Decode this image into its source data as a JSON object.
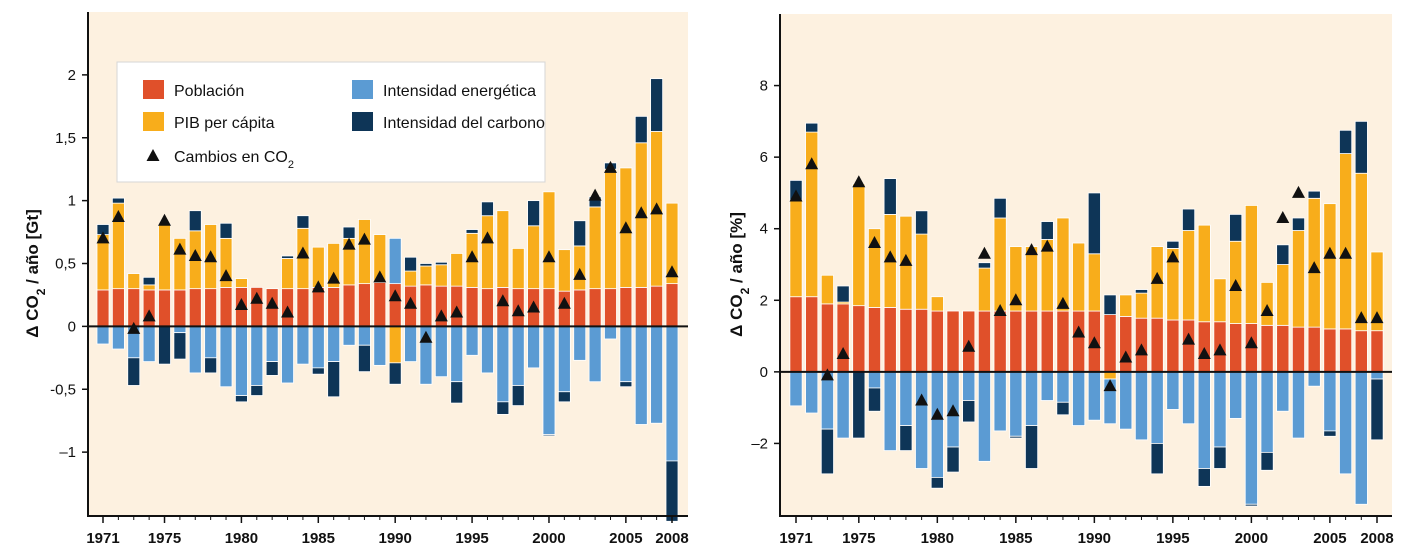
{
  "colors": {
    "poblacion": "#e0502a",
    "pib": "#f8ad1b",
    "energetica": "#5b9bd3",
    "carbono": "#0e3557",
    "background": "#fdf1e0",
    "marker": "#111111"
  },
  "legend": {
    "items": [
      {
        "key": "poblacion",
        "label": "Población",
        "color": "#e0502a",
        "kind": "box"
      },
      {
        "key": "pib",
        "label": "PIB per cápita",
        "color": "#f8ad1b",
        "kind": "box"
      },
      {
        "key": "co2",
        "label": "Cambios en CO",
        "sub": "2",
        "color": "#111111",
        "kind": "triangle"
      },
      {
        "key": "energetica",
        "label": "Intensidad energética",
        "color": "#5b9bd3",
        "kind": "box"
      },
      {
        "key": "carbono",
        "label": "Intensidad del carbono",
        "color": "#0e3557",
        "kind": "box"
      }
    ]
  },
  "chart_data": [
    {
      "type": "bar",
      "stacked": true,
      "ylabel": "Δ CO₂ / año [Gt]",
      "ylabel_parts": {
        "pre": "Δ CO",
        "sub": "2",
        "post": " / año [Gt]"
      },
      "ylim": [
        -1.5,
        2.5
      ],
      "yticks": [
        -1,
        -0.5,
        0,
        0.5,
        1,
        1.5,
        2
      ],
      "ytick_labels": [
        "–1",
        "-0,5",
        "0",
        "0,5",
        "1",
        "1,5",
        "2"
      ],
      "xlim": [
        1970.3,
        1972.4
      ],
      "xticks": [
        1971,
        1975,
        1980,
        1985,
        1990,
        1995,
        2000,
        2005,
        2008
      ],
      "xtick_labels": [
        "1971",
        "1975",
        "1980",
        "1985",
        "1990",
        "1995",
        "2000",
        "2005",
        "2008"
      ],
      "grid": false,
      "legend_position": "top-left",
      "x": [
        1971,
        1972,
        1973,
        1974,
        1975,
        1976,
        1977,
        1978,
        1979,
        1980,
        1981,
        1982,
        1983,
        1984,
        1985,
        1986,
        1987,
        1988,
        1989,
        1990,
        1991,
        1992,
        1993,
        1994,
        1995,
        1996,
        1997,
        1998,
        1999,
        2000,
        2001,
        2002,
        2003,
        2004,
        2005,
        2006,
        2007,
        2008
      ],
      "series": [
        {
          "name": "Población",
          "key": "poblacion",
          "values": [
            0.29,
            0.3,
            0.3,
            0.29,
            0.29,
            0.29,
            0.3,
            0.3,
            0.31,
            0.31,
            0.31,
            0.3,
            0.3,
            0.3,
            0.31,
            0.31,
            0.33,
            0.34,
            0.35,
            0.34,
            0.32,
            0.33,
            0.32,
            0.32,
            0.31,
            0.3,
            0.31,
            0.3,
            0.3,
            0.3,
            0.28,
            0.29,
            0.3,
            0.3,
            0.31,
            0.31,
            0.32,
            0.34
          ]
        },
        {
          "name": "PIB per cápita",
          "key": "pib",
          "values": [
            0.44,
            0.68,
            0.12,
            0.04,
            0.52,
            0.41,
            0.46,
            0.51,
            0.39,
            0.07,
            0.0,
            0.0,
            0.24,
            0.48,
            0.32,
            0.35,
            0.37,
            0.51,
            0.38,
            -0.29,
            0.12,
            0.15,
            0.17,
            0.26,
            0.43,
            0.58,
            0.61,
            0.32,
            0.5,
            0.77,
            0.33,
            0.35,
            0.65,
            0.95,
            0.95,
            1.15,
            1.23,
            0.64
          ]
        },
        {
          "name": "Intensidad energética",
          "key": "energetica",
          "values": [
            -0.14,
            -0.18,
            -0.25,
            -0.28,
            0.0,
            -0.05,
            -0.37,
            -0.25,
            -0.48,
            -0.55,
            -0.47,
            -0.28,
            -0.45,
            -0.3,
            -0.33,
            -0.28,
            -0.15,
            -0.15,
            -0.31,
            0.36,
            -0.28,
            -0.46,
            -0.4,
            -0.44,
            -0.23,
            -0.37,
            -0.6,
            -0.47,
            -0.33,
            -0.86,
            -0.52,
            -0.27,
            -0.44,
            -0.1,
            -0.44,
            -0.78,
            -0.77,
            -1.07
          ]
        },
        {
          "name": "Intensidad del carbono",
          "key": "carbono",
          "values": [
            0.08,
            0.04,
            -0.22,
            0.06,
            -0.3,
            -0.21,
            0.16,
            -0.12,
            0.12,
            -0.05,
            -0.08,
            -0.11,
            0.02,
            0.1,
            -0.05,
            -0.28,
            0.09,
            -0.21,
            0.0,
            -0.17,
            0.11,
            0.02,
            0.02,
            -0.17,
            0.03,
            0.11,
            -0.1,
            -0.16,
            0.2,
            -0.01,
            -0.08,
            0.2,
            0.08,
            0.05,
            -0.04,
            0.21,
            0.42,
            -0.48
          ]
        }
      ],
      "co2_changes": [
        0.7,
        0.87,
        -0.02,
        0.08,
        0.84,
        0.61,
        0.56,
        0.55,
        0.4,
        0.17,
        0.22,
        0.18,
        0.11,
        0.58,
        0.31,
        0.38,
        0.65,
        0.69,
        0.39,
        0.24,
        0.18,
        -0.09,
        0.08,
        0.11,
        0.55,
        0.7,
        0.2,
        0.12,
        0.15,
        0.55,
        0.18,
        0.41,
        1.04,
        1.26,
        0.78,
        0.9,
        0.93,
        0.43
      ]
    },
    {
      "type": "bar",
      "stacked": true,
      "ylabel": "Δ CO₂ / año [%]",
      "ylabel_parts": {
        "pre": "Δ CO",
        "sub": "2",
        "post": " / año [%]"
      },
      "ylim": [
        -4,
        10
      ],
      "yticks": [
        -2,
        0,
        2,
        4,
        6,
        8
      ],
      "ytick_labels": [
        "–2",
        "0",
        "2",
        "4",
        "6",
        "8"
      ],
      "xticks": [
        1971,
        1975,
        1980,
        1985,
        1990,
        1995,
        2000,
        2005,
        2008
      ],
      "xtick_labels": [
        "1971",
        "1975",
        "1980",
        "1985",
        "1990",
        "1995",
        "2000",
        "2005",
        "2008"
      ],
      "grid": false,
      "x": [
        1971,
        1972,
        1973,
        1974,
        1975,
        1976,
        1977,
        1978,
        1979,
        1980,
        1981,
        1982,
        1983,
        1984,
        1985,
        1986,
        1987,
        1988,
        1989,
        1990,
        1991,
        1992,
        1993,
        1994,
        1995,
        1996,
        1997,
        1998,
        1999,
        2000,
        2001,
        2002,
        2003,
        2004,
        2005,
        2006,
        2007,
        2008
      ],
      "series": [
        {
          "name": "Población",
          "key": "poblacion",
          "values": [
            2.1,
            2.1,
            1.9,
            1.9,
            1.85,
            1.8,
            1.8,
            1.75,
            1.75,
            1.7,
            1.7,
            1.7,
            1.7,
            1.7,
            1.7,
            1.7,
            1.7,
            1.7,
            1.7,
            1.7,
            1.6,
            1.55,
            1.5,
            1.5,
            1.45,
            1.45,
            1.4,
            1.4,
            1.35,
            1.35,
            1.3,
            1.3,
            1.25,
            1.25,
            1.2,
            1.2,
            1.15,
            1.15
          ]
        },
        {
          "name": "PIB per cápita",
          "key": "pib",
          "values": [
            2.7,
            4.6,
            0.8,
            0.05,
            3.4,
            2.2,
            2.6,
            2.6,
            2.1,
            0.4,
            0.0,
            0.0,
            1.2,
            2.6,
            1.8,
            1.8,
            2.0,
            2.6,
            1.9,
            1.6,
            -0.2,
            0.6,
            0.7,
            2.0,
            2.0,
            2.5,
            2.7,
            1.2,
            2.3,
            3.3,
            1.2,
            1.7,
            2.7,
            3.6,
            3.5,
            4.9,
            4.4,
            2.2
          ]
        },
        {
          "name": "Intensidad energética",
          "key": "energetica",
          "values": [
            -0.95,
            -1.15,
            -1.6,
            -1.85,
            0.0,
            -0.45,
            -2.2,
            -1.5,
            -2.7,
            -2.95,
            -2.1,
            -0.8,
            -2.5,
            -1.65,
            -1.8,
            -1.5,
            -0.8,
            -0.85,
            -1.5,
            -1.35,
            -1.25,
            -1.6,
            -1.9,
            -2.0,
            -1.05,
            -1.45,
            -2.7,
            -2.1,
            -1.3,
            -3.7,
            -2.25,
            -1.1,
            -1.85,
            -0.4,
            -1.65,
            -2.85,
            -3.7,
            -0.2
          ]
        },
        {
          "name": "Intensidad del carbono",
          "key": "carbono",
          "values": [
            0.55,
            0.25,
            -1.25,
            0.45,
            -1.85,
            -0.65,
            1.0,
            -0.7,
            0.65,
            -0.3,
            -0.7,
            -0.6,
            0.15,
            0.55,
            -0.05,
            -1.2,
            0.5,
            -0.35,
            0.0,
            1.7,
            0.55,
            0.0,
            0.1,
            -0.85,
            0.2,
            0.6,
            -0.5,
            -0.6,
            0.75,
            -0.05,
            -0.5,
            0.55,
            0.35,
            0.2,
            -0.15,
            0.65,
            1.45,
            -1.7
          ]
        }
      ],
      "co2_changes": [
        4.9,
        5.8,
        -0.1,
        0.5,
        5.3,
        3.6,
        3.2,
        3.1,
        -0.8,
        -1.2,
        -1.1,
        0.7,
        3.3,
        1.7,
        2.0,
        3.4,
        3.5,
        1.9,
        1.1,
        0.8,
        -0.4,
        0.4,
        0.6,
        2.6,
        3.2,
        0.9,
        0.5,
        0.6,
        2.4,
        0.8,
        1.7,
        4.3,
        5.0,
        2.9,
        3.3,
        3.3,
        1.5,
        1.5
      ]
    }
  ]
}
